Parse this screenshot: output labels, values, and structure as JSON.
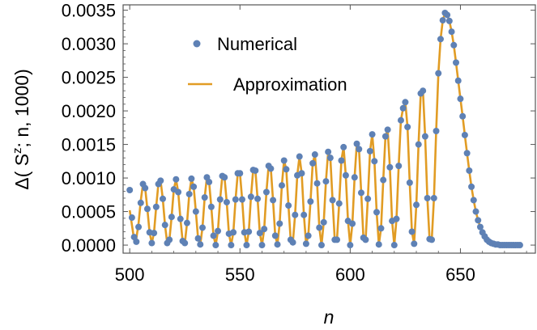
{
  "chart_data": {
    "type": "line",
    "title": "",
    "xlabel": "n",
    "ylabel": "Δ(S^z; n, 1000)",
    "ylabel_parts": {
      "pre": "Δ( S",
      "sup": "z",
      "post": "; n, 1000)"
    },
    "xlim": [
      497,
      684
    ],
    "ylim": [
      -0.00012,
      0.00358
    ],
    "xticks": [
      500,
      550,
      600,
      650
    ],
    "xtick_labels": [
      "500",
      "550",
      "600",
      "650"
    ],
    "yticks": [
      0.0,
      0.0005,
      0.001,
      0.0015,
      0.002,
      0.0025,
      0.003,
      0.0035
    ],
    "ytick_labels": [
      "0.0000",
      "0.0005",
      "0.0010",
      "0.0015",
      "0.0020",
      "0.0025",
      "0.0030",
      "0.0035"
    ],
    "grid": false,
    "legend_position": "top-left",
    "colors": {
      "numerical": "#5e81b5",
      "approximation": "#e19c24"
    },
    "x_start": 500,
    "x_step": 1,
    "series": [
      {
        "name": "Numerical",
        "style": "markers",
        "values": [
          0.00082,
          0.00041,
          0.00012,
          5e-05,
          0.00027,
          0.00063,
          0.00091,
          0.00085,
          0.00054,
          0.00019,
          3e-05,
          0.00018,
          0.00057,
          0.00091,
          0.00096,
          0.00069,
          0.0003,
          3e-05,
          8e-05,
          0.00042,
          0.00083,
          0.00098,
          0.00079,
          0.00039,
          6e-05,
          3e-05,
          0.00033,
          0.00076,
          0.00099,
          0.00087,
          0.0005,
          0.0001,
          1e-05,
          0.00026,
          0.00071,
          0.00101,
          0.00094,
          0.00057,
          0.00014,
          0.0,
          0.00021,
          0.00068,
          0.00103,
          0.00101,
          0.00064,
          0.00017,
          0.0,
          0.00019,
          0.00068,
          0.00107,
          0.00107,
          0.00068,
          0.00019,
          0.0,
          0.0002,
          0.00072,
          0.00112,
          0.00111,
          0.00069,
          0.00018,
          0.0,
          0.00024,
          0.00079,
          0.00118,
          0.00114,
          0.00067,
          0.00014,
          1e-05,
          0.00032,
          0.00089,
          0.00126,
          0.00113,
          0.00059,
          8e-05,
          4e-05,
          0.00045,
          0.00104,
          0.00132,
          0.00107,
          0.00045,
          2e-05,
          0.00014,
          0.00065,
          0.00122,
          0.00135,
          0.00092,
          0.00026,
          0.0,
          0.00034,
          0.00095,
          0.00139,
          0.0013,
          0.00067,
          8e-05,
          8e-05,
          0.00062,
          0.00126,
          0.00146,
          0.00104,
          0.00036,
          0.0,
          0.00032,
          0.00101,
          0.00151,
          0.00143,
          0.00078,
          0.00011,
          8e-05,
          0.00069,
          0.0014,
          0.00165,
          0.00125,
          0.00049,
          1e-05,
          0.00025,
          0.00097,
          0.00162,
          0.00172,
          0.00116,
          0.00036,
          0.0,
          0.00039,
          0.00118,
          0.00186,
          0.00204,
          0.00213,
          0.00176,
          0.00093,
          0.0002,
          2e-05,
          0.0006,
          0.0015,
          0.00226,
          0.0023,
          0.00162,
          0.0007,
          9e-05,
          8e-05,
          0.0007,
          0.0017,
          0.00256,
          0.00307,
          0.00335,
          0.00346,
          0.00343,
          0.00334,
          0.00318,
          0.00298,
          0.00272,
          0.00245,
          0.00218,
          0.00192,
          0.00164,
          0.00137,
          0.00111,
          0.00087,
          0.00067,
          0.0005,
          0.00037,
          0.00027,
          0.00019,
          0.00013,
          8e-05,
          5e-05,
          3e-05,
          2e-05,
          1e-05,
          1e-05,
          0.0,
          0.0,
          0.0,
          0.0,
          0.0,
          0.0,
          0.0,
          0.0,
          0.0,
          0.0
        ]
      },
      {
        "name": "Approximation",
        "style": "line",
        "values": [
          0.00052,
          0.0003,
          8e-05,
          0.0001,
          0.00032,
          0.00066,
          0.00091,
          0.00085,
          0.00054,
          0.00019,
          3e-05,
          0.00018,
          0.00057,
          0.00091,
          0.00096,
          0.00069,
          0.0003,
          3e-05,
          8e-05,
          0.00042,
          0.00083,
          0.00098,
          0.00079,
          0.00039,
          6e-05,
          3e-05,
          0.00033,
          0.00076,
          0.00099,
          0.00087,
          0.0005,
          0.0001,
          1e-05,
          0.00026,
          0.00071,
          0.00101,
          0.00094,
          0.00057,
          0.00014,
          0.0,
          0.00021,
          0.00068,
          0.00103,
          0.00101,
          0.00064,
          0.00017,
          0.0,
          0.00019,
          0.00068,
          0.00107,
          0.00107,
          0.00068,
          0.00019,
          0.0,
          0.0002,
          0.00072,
          0.00112,
          0.00111,
          0.00069,
          0.00018,
          0.0,
          0.00024,
          0.00079,
          0.00118,
          0.00114,
          0.00067,
          0.00014,
          1e-05,
          0.00032,
          0.00089,
          0.00126,
          0.00113,
          0.00059,
          8e-05,
          4e-05,
          0.00045,
          0.00104,
          0.00132,
          0.00107,
          0.00045,
          2e-05,
          0.00014,
          0.00065,
          0.00122,
          0.00135,
          0.00092,
          0.00026,
          0.0,
          0.00034,
          0.00095,
          0.00139,
          0.0013,
          0.00067,
          8e-05,
          8e-05,
          0.00062,
          0.00126,
          0.00146,
          0.00104,
          0.00036,
          0.0,
          0.00032,
          0.00101,
          0.00151,
          0.00143,
          0.00078,
          0.00011,
          8e-05,
          0.00069,
          0.0014,
          0.00165,
          0.00125,
          0.00049,
          1e-05,
          0.00025,
          0.00097,
          0.00162,
          0.00172,
          0.00116,
          0.00036,
          0.0,
          0.00039,
          0.00118,
          0.00186,
          0.00204,
          0.00213,
          0.00176,
          0.00093,
          0.0002,
          2e-05,
          0.0006,
          0.0015,
          0.00226,
          0.0023,
          0.00162,
          0.0007,
          9e-05,
          8e-05,
          0.0007,
          0.0017,
          0.00256,
          0.00307,
          0.00335,
          0.00346,
          0.00343,
          0.00334,
          0.00318,
          0.00298,
          0.00272,
          0.00245,
          0.00218,
          0.00192,
          0.00164,
          0.00137,
          0.00111,
          0.00087,
          0.00067,
          0.0005,
          0.00037,
          0.00027,
          0.00019,
          0.00013,
          8e-05,
          5e-05,
          3e-05,
          2e-05,
          1e-05,
          1e-05,
          0.0,
          0.0,
          0.0,
          0.0,
          0.0,
          0.0,
          0.0,
          0.0,
          0.0,
          0.0
        ]
      }
    ]
  }
}
